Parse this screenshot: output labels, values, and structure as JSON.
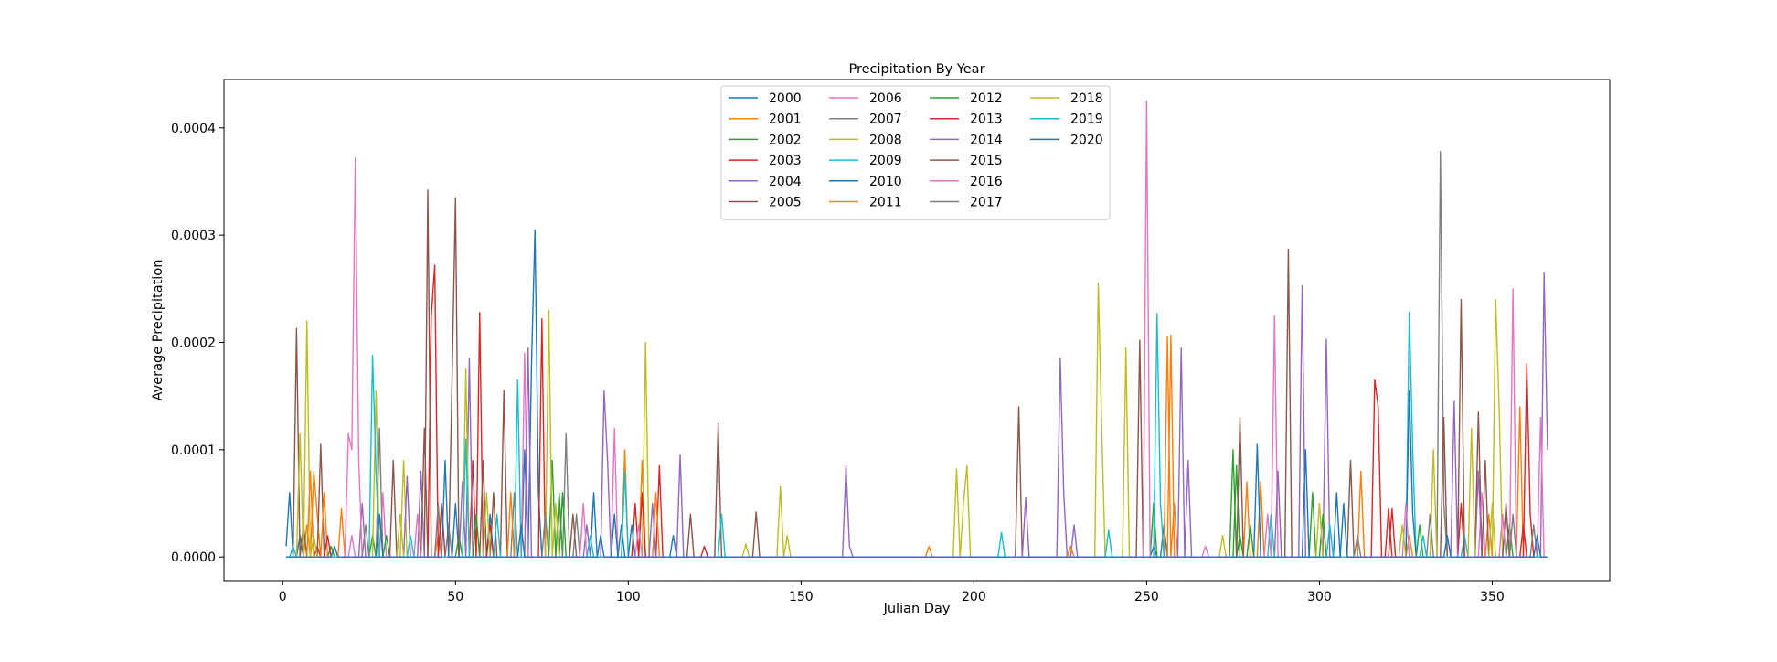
{
  "chart_data": {
    "type": "line",
    "title": "Precipitation By Year",
    "xlabel": "Julian Day",
    "ylabel": "Average Precipitation",
    "xlim": [
      -17,
      384
    ],
    "ylim": [
      -2.2e-05,
      0.000445
    ],
    "xticks": [
      0,
      50,
      100,
      150,
      200,
      250,
      300,
      350
    ],
    "xtick_labels": [
      "0",
      "50",
      "100",
      "150",
      "200",
      "250",
      "300",
      "350"
    ],
    "yticks": [
      0,
      0.0001,
      0.0002,
      0.0003,
      0.0004
    ],
    "ytick_labels": [
      "0.0000",
      "0.0001",
      "0.0002",
      "0.0003",
      "0.0004"
    ],
    "grid": false,
    "legend_position": "upper center",
    "legend_columns": 4,
    "x_domain": [
      1,
      366
    ],
    "series": [
      {
        "name": "2000",
        "color": "#1f77b4",
        "values": [
          [
            1,
            1e-05
          ],
          [
            2,
            6e-05
          ],
          [
            5,
            2e-05
          ],
          [
            50,
            5e-05
          ],
          [
            70,
            0.0001
          ],
          [
            72,
            0.00018
          ],
          [
            73,
            0.000305
          ],
          [
            74,
            6e-05
          ],
          [
            98,
            3e-05
          ],
          [
            252,
            1e-05
          ],
          [
            255,
            3e-05
          ]
        ]
      },
      {
        "name": "2001",
        "color": "#ff7f0e",
        "values": [
          [
            7,
            3e-05
          ],
          [
            9,
            8e-05
          ],
          [
            10,
            4e-05
          ],
          [
            17,
            4.5e-05
          ],
          [
            45,
            2e-05
          ],
          [
            99,
            0.0001
          ],
          [
            104,
            9e-05
          ],
          [
            187,
            1e-05
          ],
          [
            256,
            0.000205
          ],
          [
            258,
            5e-05
          ],
          [
            283,
            7e-05
          ],
          [
            326,
            2e-05
          ],
          [
            358,
            0.00014
          ]
        ]
      },
      {
        "name": "2002",
        "color": "#2ca02c",
        "values": [
          [
            14,
            1e-05
          ],
          [
            26,
            2e-05
          ],
          [
            51,
            2e-05
          ],
          [
            78,
            9e-05
          ],
          [
            80,
            6e-05
          ],
          [
            252,
            5e-05
          ],
          [
            275,
            0.0001
          ],
          [
            277,
            2e-05
          ],
          [
            298,
            6e-05
          ],
          [
            355,
            3e-05
          ]
        ]
      },
      {
        "name": "2003",
        "color": "#d62728",
        "values": [
          [
            10,
            1e-05
          ],
          [
            43,
            0.000225
          ],
          [
            44,
            0.000272
          ],
          [
            55,
            9e-05
          ],
          [
            57,
            0.000228
          ],
          [
            75,
            0.000222
          ],
          [
            102,
            5e-05
          ],
          [
            109,
            8.5e-05
          ],
          [
            122,
            1e-05
          ],
          [
            316,
            0.000165
          ],
          [
            317,
            0.00014
          ],
          [
            320,
            4.5e-05
          ],
          [
            360,
            0.00018
          ],
          [
            361,
            4e-05
          ]
        ]
      },
      {
        "name": "2004",
        "color": "#9467bd",
        "values": [
          [
            23,
            5e-05
          ],
          [
            52,
            7e-05
          ],
          [
            54,
            0.000185
          ],
          [
            93,
            0.000155
          ],
          [
            94,
            9e-05
          ],
          [
            115,
            9.5e-05
          ],
          [
            163,
            8.5e-05
          ],
          [
            164,
            1e-05
          ],
          [
            225,
            0.000185
          ],
          [
            226,
            6e-05
          ],
          [
            229,
            3e-05
          ],
          [
            295,
            0.000253
          ],
          [
            302,
            0.000203
          ],
          [
            365,
            0.000265
          ],
          [
            366,
            0.0001
          ]
        ]
      },
      {
        "name": "2005",
        "color": "#8c564b",
        "values": [
          [
            4,
            0.000213
          ],
          [
            6,
            3e-05
          ],
          [
            11,
            0.000105
          ],
          [
            42,
            0.000342
          ],
          [
            49,
            0.000165
          ],
          [
            50,
            0.000335
          ],
          [
            58,
            9e-05
          ],
          [
            64,
            0.000155
          ],
          [
            126,
            0.000124
          ],
          [
            137,
            4.2e-05
          ],
          [
            213,
            0.00014
          ],
          [
            248,
            0.000202
          ],
          [
            291,
            0.000287
          ],
          [
            341,
            0.00024
          ],
          [
            346,
            0.000135
          ]
        ]
      },
      {
        "name": "2006",
        "color": "#e377c2",
        "values": [
          [
            19,
            0.000115
          ],
          [
            20,
            0.0001
          ],
          [
            21,
            0.000372
          ],
          [
            22,
            9e-05
          ],
          [
            29,
            6e-05
          ],
          [
            70,
            0.00019
          ],
          [
            96,
            0.00012
          ],
          [
            250,
            0.000425
          ],
          [
            287,
            0.000225
          ],
          [
            347,
            6e-05
          ],
          [
            356,
            0.00025
          ],
          [
            364,
            0.00013
          ]
        ]
      },
      {
        "name": "2007",
        "color": "#7f7f7f",
        "values": [
          [
            28,
            0.00012
          ],
          [
            45,
            5e-05
          ],
          [
            67,
            6e-05
          ],
          [
            82,
            0.000115
          ],
          [
            85,
            4e-05
          ],
          [
            335,
            0.000378
          ],
          [
            336,
            5e-05
          ],
          [
            356,
            4e-05
          ]
        ]
      },
      {
        "name": "2008",
        "color": "#bcbd22",
        "values": [
          [
            5,
            0.000115
          ],
          [
            7,
            0.00022
          ],
          [
            27,
            0.000155
          ],
          [
            35,
            9e-05
          ],
          [
            53,
            0.000175
          ],
          [
            77,
            0.00023
          ],
          [
            105,
            0.0002
          ],
          [
            144,
            6.6e-05
          ],
          [
            146,
            2e-05
          ],
          [
            195,
            8.2e-05
          ],
          [
            197,
            5e-05
          ],
          [
            198,
            8.5e-05
          ],
          [
            236,
            0.000255
          ],
          [
            237,
            0.00012
          ],
          [
            244,
            0.000195
          ],
          [
            333,
            0.0001
          ],
          [
            351,
            0.00024
          ],
          [
            352,
            0.00014
          ]
        ]
      },
      {
        "name": "2009",
        "color": "#17becf",
        "values": [
          [
            26,
            0.000188
          ],
          [
            27,
            8e-05
          ],
          [
            53,
            0.00011
          ],
          [
            68,
            0.000165
          ],
          [
            99,
            8e-05
          ],
          [
            127,
            4e-05
          ],
          [
            208,
            2.3e-05
          ],
          [
            239,
            2.5e-05
          ],
          [
            253,
            0.000227
          ],
          [
            254,
            5e-05
          ],
          [
            326,
            0.000228
          ],
          [
            327,
            0.0001
          ],
          [
            342,
            2e-05
          ]
        ]
      },
      {
        "name": "2010",
        "color": "#1f77b4",
        "values": [
          [
            28,
            4e-05
          ],
          [
            60,
            4e-05
          ],
          [
            90,
            6e-05
          ],
          [
            96,
            4e-05
          ],
          [
            101,
            3e-05
          ],
          [
            113,
            2e-05
          ],
          [
            282,
            0.000105
          ],
          [
            296,
            0.0001
          ],
          [
            305,
            6e-05
          ],
          [
            326,
            0.000155
          ],
          [
            327,
            4e-05
          ]
        ]
      },
      {
        "name": "2011",
        "color": "#ff7f0e",
        "values": [
          [
            8,
            8e-05
          ],
          [
            12,
            6e-05
          ],
          [
            66,
            6e-05
          ],
          [
            108,
            6e-05
          ],
          [
            228,
            1e-05
          ],
          [
            257,
            0.000207
          ],
          [
            279,
            7e-05
          ],
          [
            312,
            8e-05
          ],
          [
            349,
            4e-05
          ]
        ]
      },
      {
        "name": "2012",
        "color": "#2ca02c",
        "values": [
          [
            30,
            2e-05
          ],
          [
            56,
            4e-05
          ],
          [
            81,
            6e-05
          ],
          [
            276,
            8.5e-05
          ],
          [
            280,
            3e-05
          ],
          [
            301,
            4e-05
          ],
          [
            329,
            3e-05
          ]
        ]
      },
      {
        "name": "2013",
        "color": "#d62728",
        "values": [
          [
            13,
            2e-05
          ],
          [
            46,
            5e-05
          ],
          [
            60,
            3e-05
          ],
          [
            104,
            6e-05
          ],
          [
            321,
            4.5e-05
          ],
          [
            341,
            5e-05
          ],
          [
            359,
            3e-05
          ]
        ]
      },
      {
        "name": "2014",
        "color": "#9467bd",
        "values": [
          [
            36,
            7.5e-05
          ],
          [
            40,
            8e-05
          ],
          [
            71,
            0.000195
          ],
          [
            88,
            3e-05
          ],
          [
            107,
            5e-05
          ],
          [
            215,
            5.5e-05
          ],
          [
            260,
            0.000195
          ],
          [
            262,
            9e-05
          ],
          [
            288,
            8e-05
          ],
          [
            339,
            0.000145
          ],
          [
            346,
            8e-05
          ]
        ]
      },
      {
        "name": "2015",
        "color": "#8c564b",
        "values": [
          [
            32,
            9e-05
          ],
          [
            41,
            0.00012
          ],
          [
            61,
            6e-05
          ],
          [
            84,
            4e-05
          ],
          [
            118,
            4e-05
          ],
          [
            277,
            0.00013
          ],
          [
            309,
            9e-05
          ],
          [
            336,
            0.00013
          ],
          [
            348,
            9e-05
          ],
          [
            354,
            5e-05
          ]
        ]
      },
      {
        "name": "2016",
        "color": "#e377c2",
        "values": [
          [
            20,
            2e-05
          ],
          [
            39,
            4e-05
          ],
          [
            87,
            5e-05
          ],
          [
            103,
            3e-05
          ],
          [
            267,
            1e-05
          ],
          [
            285,
            4e-05
          ],
          [
            325,
            5e-05
          ],
          [
            353,
            4e-05
          ]
        ]
      },
      {
        "name": "2017",
        "color": "#7f7f7f",
        "values": [
          [
            24,
            3e-05
          ],
          [
            48,
            3e-05
          ],
          [
            76,
            4e-05
          ],
          [
            311,
            2e-05
          ],
          [
            332,
            4e-05
          ],
          [
            362,
            3e-05
          ]
        ]
      },
      {
        "name": "2018",
        "color": "#bcbd22",
        "values": [
          [
            9,
            2e-05
          ],
          [
            34,
            4e-05
          ],
          [
            59,
            6e-05
          ],
          [
            79,
            5e-05
          ],
          [
            134,
            1.2e-05
          ],
          [
            272,
            2e-05
          ],
          [
            300,
            5e-05
          ],
          [
            324,
            3e-05
          ],
          [
            344,
            0.00012
          ],
          [
            350,
            5e-05
          ]
        ]
      },
      {
        "name": "2019",
        "color": "#17becf",
        "values": [
          [
            3,
            1e-05
          ],
          [
            37,
            2e-05
          ],
          [
            62,
            4e-05
          ],
          [
            89,
            2e-05
          ],
          [
            286,
            4e-05
          ],
          [
            303,
            3e-05
          ],
          [
            330,
            2e-05
          ]
        ]
      },
      {
        "name": "2020",
        "color": "#1f77b4",
        "values": [
          [
            15,
            1e-05
          ],
          [
            47,
            9e-05
          ],
          [
            69,
            3e-05
          ],
          [
            92,
            2e-05
          ],
          [
            307,
            5e-05
          ],
          [
            337,
            2e-05
          ],
          [
            363,
            2e-05
          ]
        ]
      }
    ]
  }
}
